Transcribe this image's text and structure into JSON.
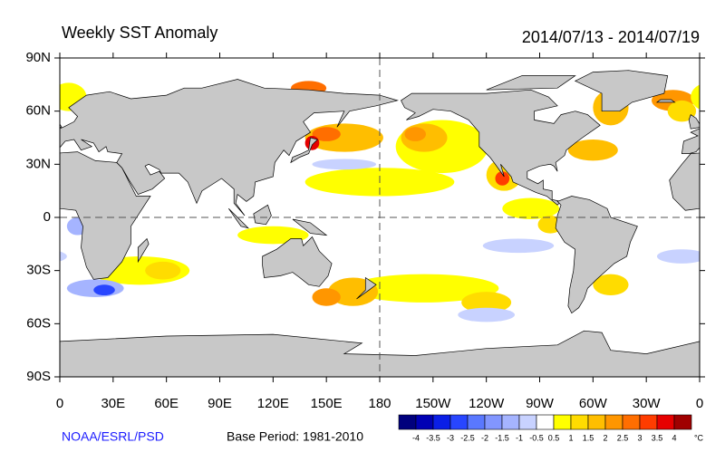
{
  "map": {
    "title": "Weekly SST Anomaly",
    "date_range": "2014/07/13 - 2014/07/19",
    "xlim": [
      0,
      360
    ],
    "ylim": [
      -90,
      90
    ],
    "lat_ticks": [
      {
        "value": 90,
        "label": "90N"
      },
      {
        "value": 60,
        "label": "60N"
      },
      {
        "value": 30,
        "label": "30N"
      },
      0,
      {
        "value": -30,
        "label": "30S"
      },
      {
        "value": -60,
        "label": "60S"
      },
      {
        "value": -90,
        "label": "90S"
      }
    ],
    "lon_ticks": [
      0,
      {
        "value": 30,
        "label": "30E"
      },
      {
        "value": 60,
        "label": "60E"
      },
      {
        "value": 90,
        "label": "90E"
      },
      {
        "value": 120,
        "label": "120E"
      },
      {
        "value": 150,
        "label": "150E"
      },
      180,
      {
        "value": 210,
        "label": "150W"
      },
      {
        "value": 240,
        "label": "120W"
      },
      {
        "value": 270,
        "label": "90W"
      },
      {
        "value": 300,
        "label": "60W"
      },
      {
        "value": 330,
        "label": "30W"
      },
      {
        "value": 360,
        "label": "0"
      }
    ],
    "credit": "NOAA/ESRL/PSD",
    "base_period": "Base Period: 1981-2010",
    "colorbar": {
      "labels": [
        -4,
        -3.5,
        -3,
        -2.5,
        -2,
        -1.5,
        -1,
        -0.5,
        0.5,
        1,
        1.5,
        2,
        2.5,
        3,
        3.5,
        4
      ],
      "colors": [
        "#00007d",
        "#0000b4",
        "#0a1ee6",
        "#2846ff",
        "#5a78ff",
        "#8296ff",
        "#a5b4ff",
        "#c8d2ff",
        "#ffffff",
        "#ffff00",
        "#ffdc00",
        "#ffbe00",
        "#ff9600",
        "#ff6e00",
        "#ff3c00",
        "#e60000",
        "#a00000"
      ],
      "unit": "°C"
    }
  }
}
